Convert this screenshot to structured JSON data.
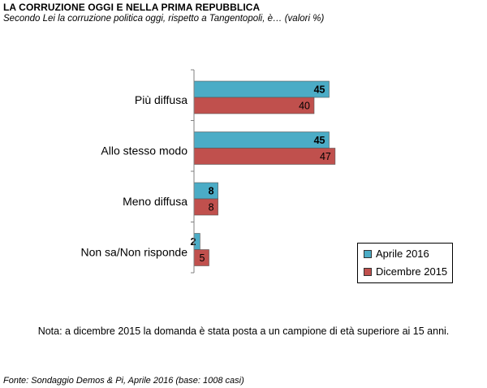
{
  "header": {
    "title": "LA CORRUZIONE OGGI E NELLA PRIMA REPUBBLICA",
    "subtitle": "Secondo Lei la corruzione politica oggi, rispetto a Tangentopoli, è… (valori %)"
  },
  "chart_data": {
    "type": "bar",
    "orientation": "horizontal",
    "categories": [
      "Più diffusa",
      "Allo stesso modo",
      "Meno diffusa",
      "Non sa/Non risponde"
    ],
    "series": [
      {
        "name": "Aprile 2016",
        "values": [
          45,
          45,
          8,
          2
        ],
        "color": "#4bacc6"
      },
      {
        "name": "Dicembre 2015",
        "values": [
          40,
          47,
          8,
          5
        ],
        "color": "#c0504d"
      }
    ],
    "xlim": [
      0,
      100
    ],
    "grid": false,
    "legend_position": "bottom-right",
    "data_labels": true
  },
  "legend": {
    "items": [
      {
        "label": "Aprile 2016",
        "color": "#4bacc6"
      },
      {
        "label": "Dicembre 2015",
        "color": "#c0504d"
      }
    ]
  },
  "note": "Nota: a dicembre 2015 la domanda è stata posta a un campione di età superiore ai 15 anni.",
  "source": "Fonte: Sondaggio Demos & Pi, Aprile 2016 (base: 1008 casi)"
}
